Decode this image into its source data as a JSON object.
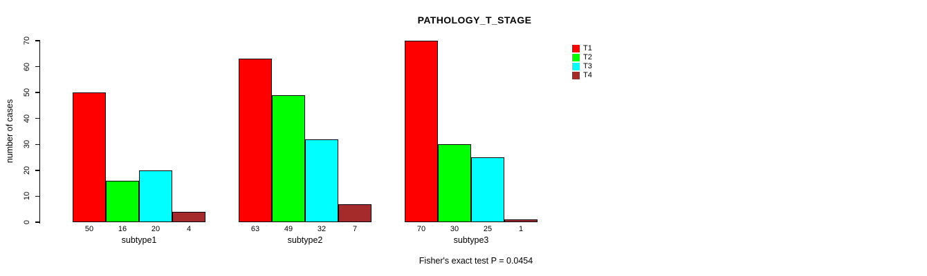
{
  "chart_data": {
    "type": "bar",
    "title": "PATHOLOGY_T_STAGE",
    "ylabel": "number of cases",
    "xlabel": "",
    "annotation": "Fisher's exact test P = 0.0454",
    "categories": [
      "subtype1",
      "subtype2",
      "subtype3"
    ],
    "series": [
      {
        "name": "T1",
        "color": "#FF0000",
        "values": [
          50,
          63,
          70
        ]
      },
      {
        "name": "T2",
        "color": "#00FF00",
        "values": [
          16,
          49,
          30
        ]
      },
      {
        "name": "T3",
        "color": "#00FFFF",
        "values": [
          20,
          32,
          25
        ]
      },
      {
        "name": "T4",
        "color": "#A52A2A",
        "values": [
          4,
          7,
          1
        ]
      }
    ],
    "ylim": [
      0,
      70
    ],
    "yticks": [
      0,
      10,
      20,
      30,
      40,
      50,
      60,
      70
    ],
    "grid": false,
    "legend_position": "right",
    "bar_border_color": "#000000",
    "bar_value_labels": true
  }
}
